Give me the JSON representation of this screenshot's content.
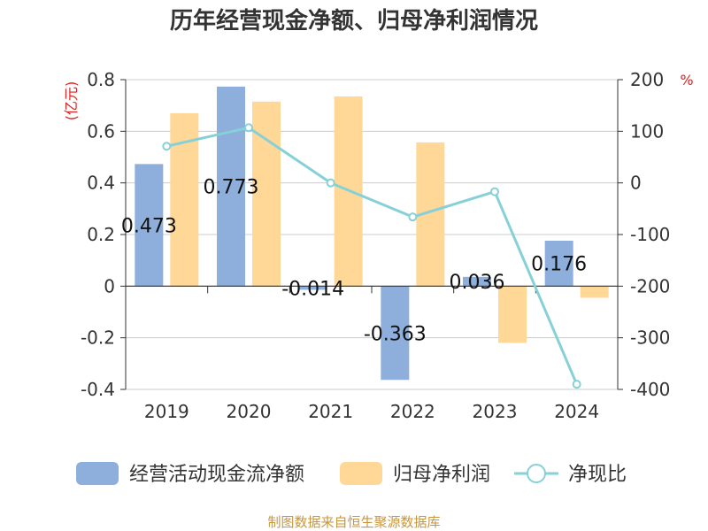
{
  "chart_data": {
    "type": "bar",
    "title": "历年经营现金净额、归母净利润情况",
    "categories": [
      "2019",
      "2020",
      "2021",
      "2022",
      "2023",
      "2024"
    ],
    "series": [
      {
        "name": "经营活动现金流净额",
        "type": "bar",
        "axis": "left",
        "color": "#8eaedc",
        "values": [
          0.473,
          0.773,
          -0.014,
          -0.363,
          0.036,
          0.176
        ],
        "labels": [
          "0.473",
          "0.773",
          "-0.014",
          "-0.363",
          "0.036",
          "0.176"
        ]
      },
      {
        "name": "归母净利润",
        "type": "bar",
        "axis": "left",
        "color": "#ffd898",
        "values": [
          0.67,
          0.715,
          0.735,
          0.557,
          -0.22,
          -0.045
        ]
      },
      {
        "name": "净现比",
        "type": "line",
        "axis": "right",
        "color": "#86d0d8",
        "values": [
          71,
          107,
          0,
          -66,
          -17,
          -390
        ]
      }
    ],
    "y_left": {
      "unit": "(亿元)",
      "ylim": [
        -0.4,
        0.8
      ],
      "ticks": [
        "0.8",
        "0.6",
        "0.4",
        "0.2",
        "0",
        "-0.2",
        "-0.4"
      ]
    },
    "y_right": {
      "unit": "%",
      "ylim": [
        -400,
        200
      ],
      "ticks": [
        "200",
        "100",
        "0",
        "-100",
        "-200",
        "-300",
        "-400"
      ]
    },
    "grid": true,
    "legend_position": "bottom"
  },
  "source": "制图数据来自恒生聚源数据库"
}
